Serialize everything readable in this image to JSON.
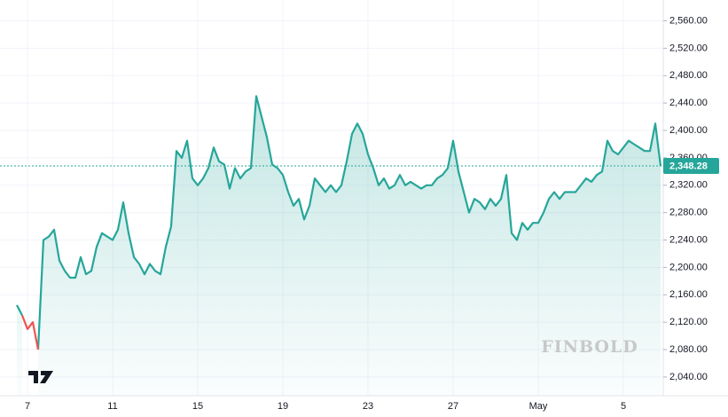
{
  "chart_data": {
    "type": "line",
    "categories": [
      null,
      null,
      "7",
      null,
      null,
      null,
      null,
      null,
      null,
      null,
      null,
      null,
      null,
      null,
      null,
      null,
      null,
      null,
      "11",
      null,
      null,
      null,
      null,
      null,
      null,
      null,
      null,
      null,
      null,
      null,
      null,
      null,
      null,
      null,
      "15",
      null,
      null,
      null,
      null,
      null,
      null,
      null,
      null,
      null,
      null,
      null,
      null,
      null,
      null,
      null,
      "19",
      null,
      null,
      null,
      null,
      null,
      null,
      null,
      null,
      null,
      null,
      null,
      null,
      null,
      null,
      null,
      "23",
      null,
      null,
      null,
      null,
      null,
      null,
      null,
      null,
      null,
      null,
      null,
      null,
      null,
      null,
      null,
      "27",
      null,
      null,
      null,
      null,
      null,
      null,
      null,
      null,
      null,
      null,
      null,
      null,
      null,
      null,
      null,
      "May",
      null,
      null,
      null,
      null,
      null,
      null,
      null,
      null,
      null,
      null,
      null,
      null,
      null,
      null,
      null,
      "5",
      null,
      null,
      null,
      null,
      null,
      null,
      null
    ],
    "series": [
      {
        "color": "#26a69a",
        "values": [
          2145,
          2130,
          null,
          null,
          2080,
          2240,
          2245,
          2255,
          2210,
          2195,
          2185,
          2185,
          2215,
          2190,
          2195,
          2230,
          2250,
          2245,
          2240,
          2255,
          2295,
          2250,
          2215,
          2205,
          2190,
          2205,
          2195,
          2190,
          2230,
          2260,
          2370,
          2360,
          2385,
          2330,
          2320,
          2330,
          2345,
          2375,
          2355,
          2350,
          2315,
          2345,
          2330,
          2340,
          2345,
          2450,
          2420,
          2390,
          2350,
          2345,
          2335,
          2310,
          2290,
          2300,
          2270,
          2290,
          2330,
          2320,
          2310,
          2320,
          2310,
          2320,
          2355,
          2395,
          2410,
          2395,
          2365,
          2345,
          2320,
          2330,
          2315,
          2320,
          2335,
          2320,
          2325,
          2320,
          2315,
          2320,
          2320,
          2330,
          2335,
          2345,
          2385,
          2340,
          2310,
          2280,
          2300,
          2295,
          2285,
          2300,
          2290,
          2300,
          2335,
          2250,
          2240,
          2265,
          2255,
          2265,
          2265,
          2280,
          2300,
          2310,
          2300,
          2310,
          2310,
          2310,
          2320,
          2330,
          2325,
          2335,
          2340,
          2385,
          2370,
          2365,
          2375,
          2385,
          2380,
          2375,
          2370,
          2370,
          2410,
          2348
        ]
      },
      {
        "color": "#ef5350",
        "values": [
          null,
          2130,
          2110,
          2120,
          2080,
          null,
          null,
          null,
          null,
          null,
          null,
          null,
          null,
          null,
          null,
          null,
          null,
          null,
          null,
          null,
          null,
          null,
          null,
          null,
          null,
          null,
          null,
          null,
          null,
          null,
          null,
          null,
          null,
          null,
          null,
          null,
          null,
          null,
          null,
          null,
          null,
          null,
          null,
          null,
          null,
          null,
          null,
          null,
          null,
          null,
          null,
          null,
          null,
          null,
          null,
          null,
          null,
          null,
          null,
          null,
          null,
          null,
          null,
          null,
          null,
          null,
          null,
          null,
          null,
          null,
          null,
          null,
          null,
          null,
          null,
          null,
          null,
          null,
          null,
          null,
          null,
          null,
          null,
          null,
          null,
          null,
          null,
          null,
          null,
          null,
          null,
          null,
          null,
          null,
          null,
          null,
          null,
          null,
          null,
          null,
          null,
          null,
          null,
          null,
          null,
          null,
          null,
          null,
          null,
          null,
          null,
          null,
          null,
          null,
          null,
          null,
          null,
          null,
          null,
          null,
          null,
          null
        ]
      }
    ],
    "ylim": [
      2014,
      2571
    ],
    "yticks": [
      {
        "value": 2040,
        "label": "2,040.00"
      },
      {
        "value": 2080,
        "label": "2,080.00"
      },
      {
        "value": 2120,
        "label": "2,120.00"
      },
      {
        "value": 2160,
        "label": "2,160.00"
      },
      {
        "value": 2200,
        "label": "2,200.00"
      },
      {
        "value": 2240,
        "label": "2,240.00"
      },
      {
        "value": 2280,
        "label": "2,280.00"
      },
      {
        "value": 2320,
        "label": "2,320.00"
      },
      {
        "value": 2360,
        "label": "2,360.00"
      },
      {
        "value": 2400,
        "label": "2,400.00"
      },
      {
        "value": 2440,
        "label": "2,440.00"
      },
      {
        "value": 2480,
        "label": "2,480.00"
      },
      {
        "value": 2520,
        "label": "2,520.00"
      },
      {
        "value": 2560,
        "label": "2,560.00"
      }
    ],
    "last_price": {
      "value": 2348.28,
      "label": "2,348.28"
    },
    "grid": true,
    "watermark": "FINBOLD"
  }
}
